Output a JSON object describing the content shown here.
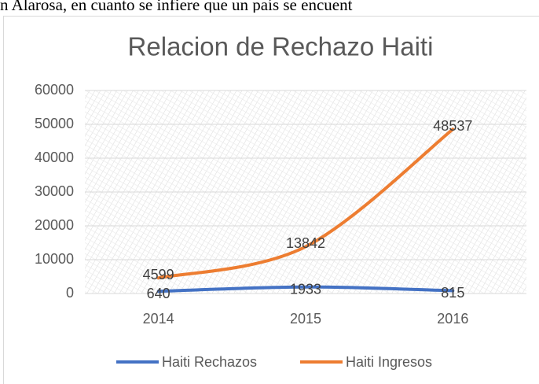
{
  "page_text": "n Alarosa, en cuanto se infiere que un país se encuent",
  "chart_data": {
    "type": "line",
    "title": "Relacion de Rechazo Haiti",
    "categories": [
      "2014",
      "2015",
      "2016"
    ],
    "series": [
      {
        "name": "Haiti Rechazos",
        "color": "#4472c4",
        "values": [
          640,
          1933,
          815
        ]
      },
      {
        "name": "Haiti Ingresos",
        "color": "#ed7d31",
        "values": [
          4599,
          13842,
          48537
        ]
      }
    ],
    "ylim": [
      0,
      60000
    ],
    "yticks": [
      0,
      10000,
      20000,
      30000,
      40000,
      50000,
      60000
    ],
    "grid": true,
    "legend": "bottom"
  }
}
